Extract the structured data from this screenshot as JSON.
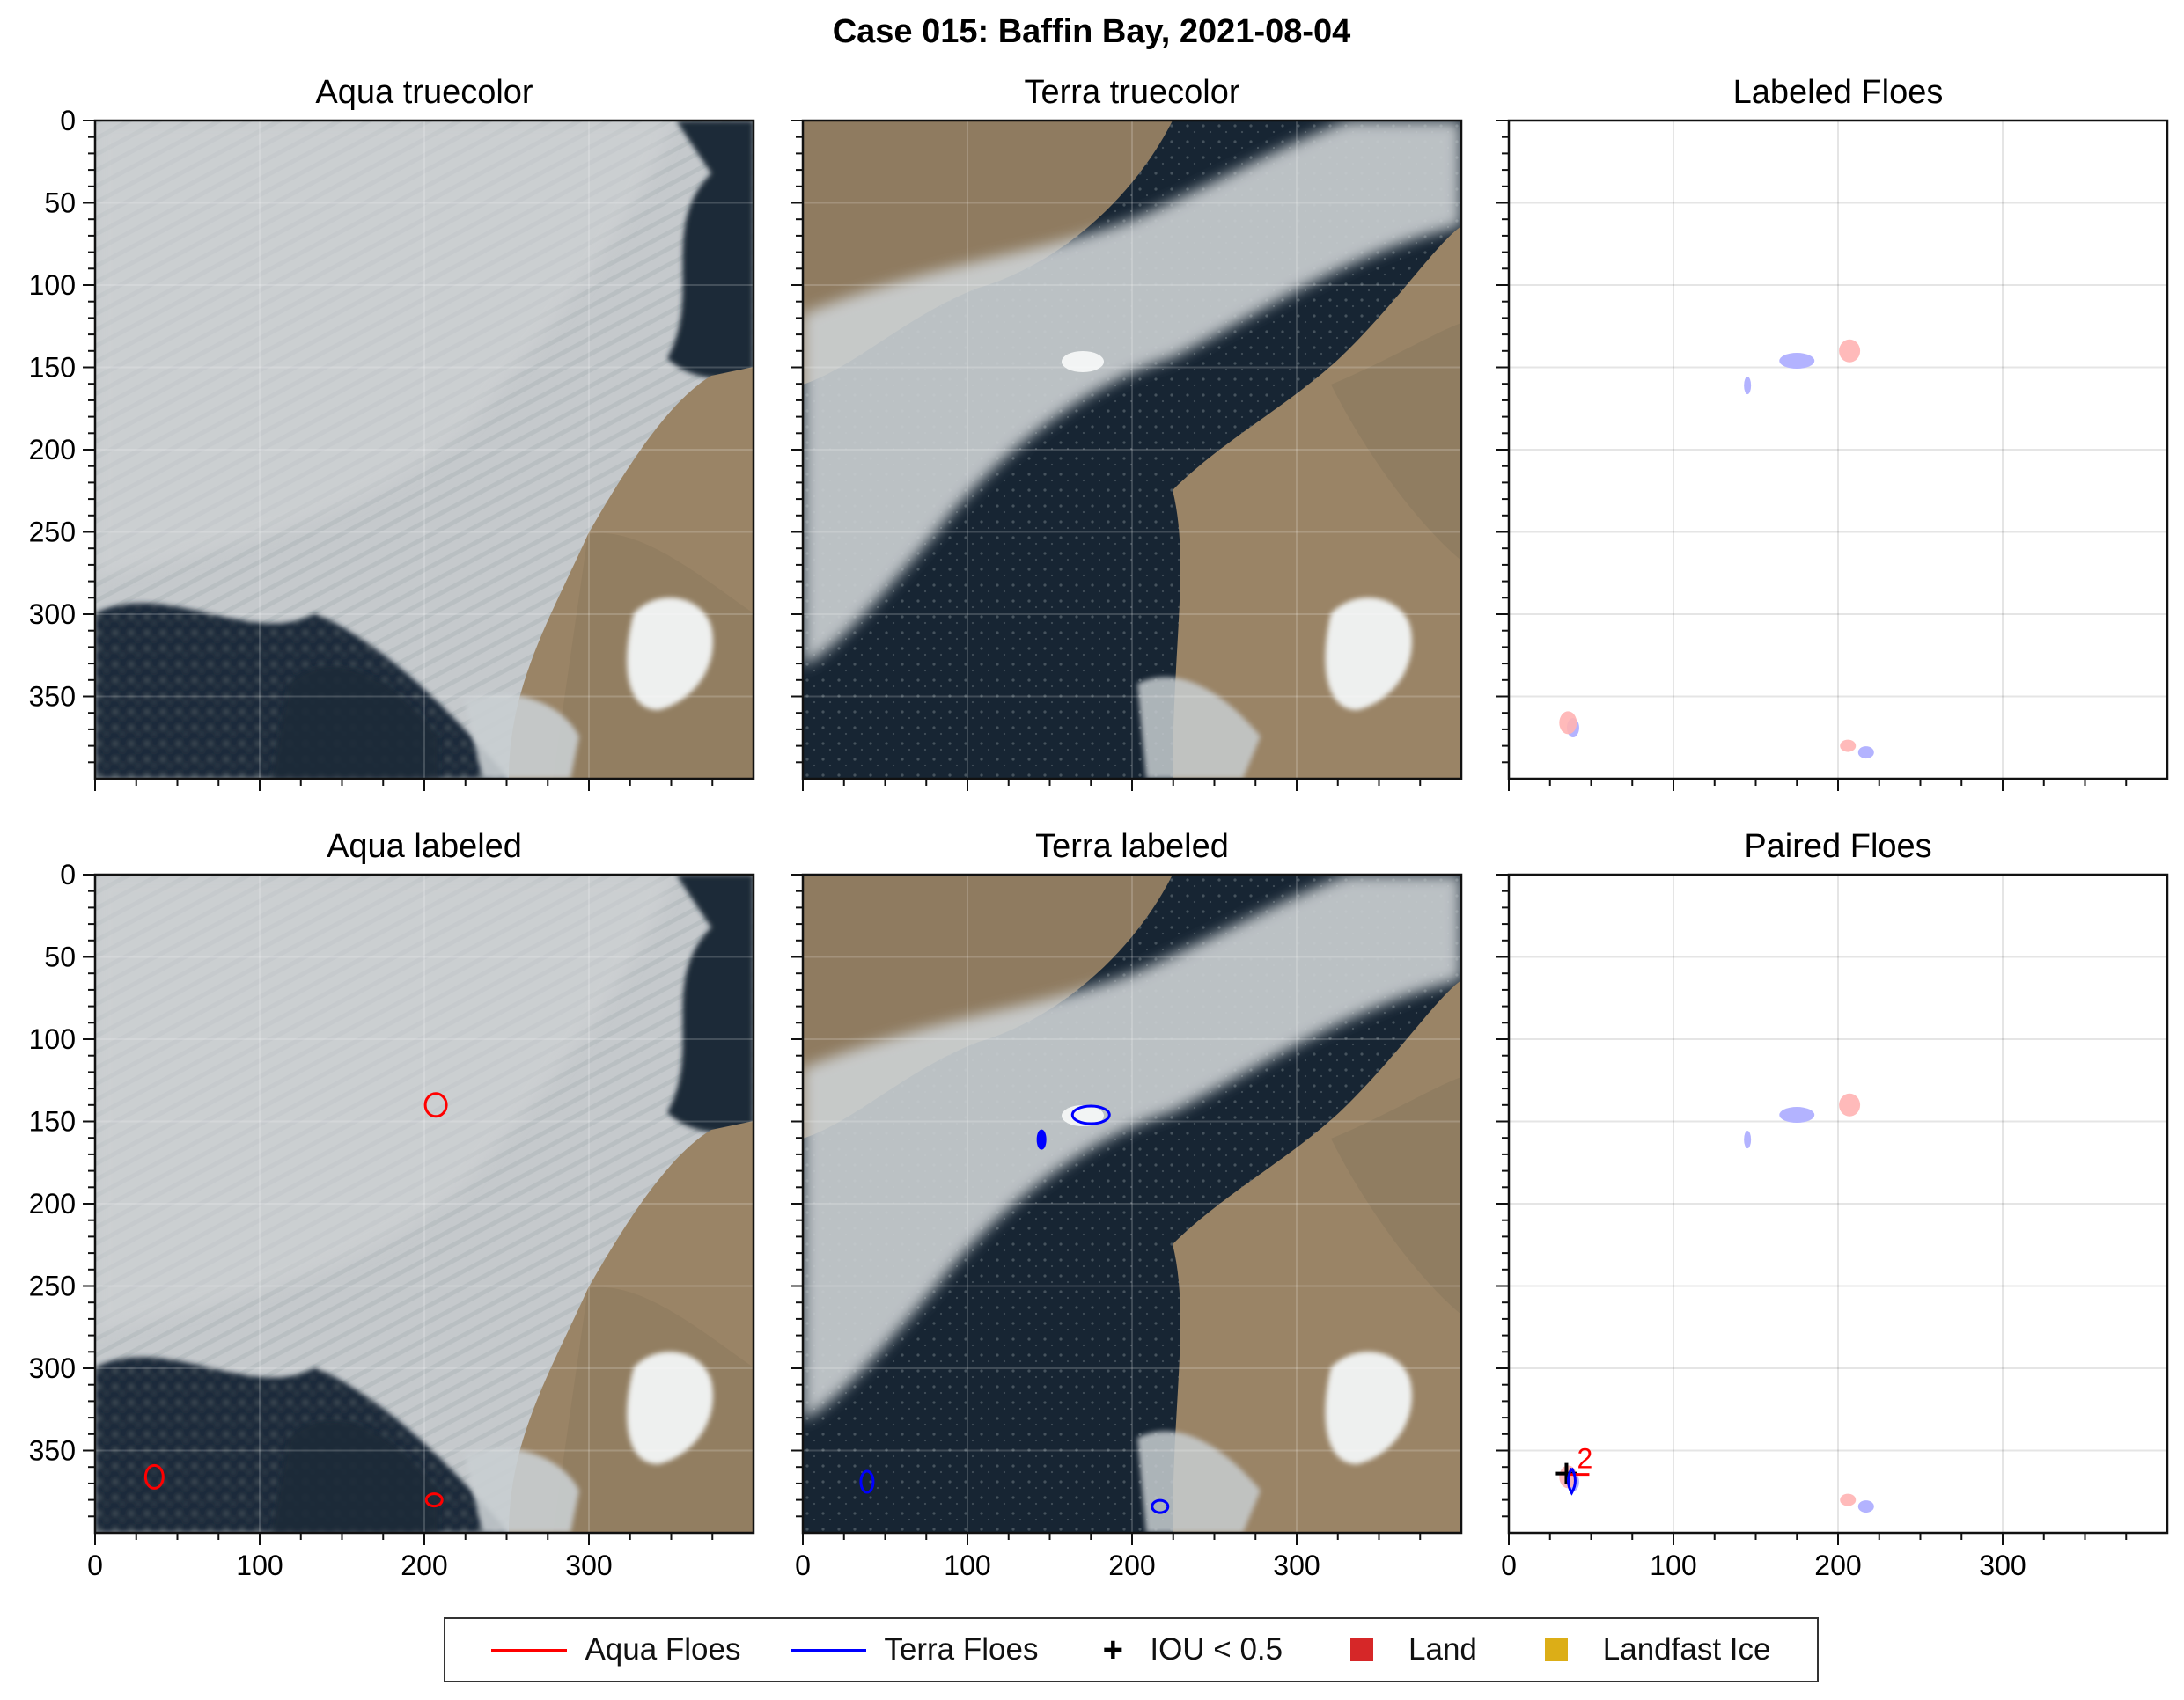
{
  "figure": {
    "title": "Case 015: Baffin Bay, 2021-08-04"
  },
  "panels": [
    {
      "title": "Aqua truecolor",
      "kind": "image",
      "source": "aqua"
    },
    {
      "title": "Terra truecolor",
      "kind": "image",
      "source": "terra"
    },
    {
      "title": "Labeled Floes",
      "kind": "floes"
    },
    {
      "title": "Aqua labeled",
      "kind": "image",
      "source": "aqua"
    },
    {
      "title": "Terra labeled",
      "kind": "image",
      "source": "terra"
    },
    {
      "title": "Paired Floes",
      "kind": "floes"
    }
  ],
  "axes": {
    "x_ticks": [
      0,
      100,
      200,
      300
    ],
    "y_ticks": [
      0,
      50,
      100,
      150,
      200,
      250,
      300,
      350
    ],
    "xlim": [
      0,
      400
    ],
    "ylim": [
      400,
      0
    ],
    "grid": true
  },
  "legend": {
    "placement": "bottom-center",
    "items": [
      {
        "label": "Aqua Floes",
        "marker": "line",
        "color": "#ff0000"
      },
      {
        "label": "Terra Floes",
        "marker": "line",
        "color": "#0000ff"
      },
      {
        "label": "IOU < 0.5",
        "marker": "plus",
        "color": "#000000"
      },
      {
        "label": "Land",
        "marker": "square",
        "color": "#d62728"
      },
      {
        "label": "Landfast Ice",
        "marker": "square",
        "color": "#dcae17"
      }
    ]
  },
  "colors": {
    "water": "#1a2a38",
    "land": "#9a8466",
    "cloud": "#c4c8cb",
    "aqua_floe": "#ff0000",
    "terra_floe": "#0000ff",
    "aqua_fill": "#ffb3b3",
    "terra_fill": "#b3b3ff"
  },
  "chart_data": {
    "type": "scatter",
    "title": "Case 015: Baffin Bay, 2021-08-04",
    "xlim": [
      0,
      400
    ],
    "ylim": [
      400,
      0
    ],
    "aqua_floes": [
      {
        "x": 207,
        "y": 140
      },
      {
        "x": 36,
        "y": 366
      },
      {
        "x": 206,
        "y": 380
      }
    ],
    "terra_floes": [
      {
        "x": 175,
        "y": 146
      },
      {
        "x": 145,
        "y": 161
      },
      {
        "x": 39,
        "y": 369
      },
      {
        "x": 217,
        "y": 384
      }
    ],
    "iou_below_threshold": [
      {
        "x": 35,
        "y": 364,
        "label": "2"
      }
    ]
  }
}
